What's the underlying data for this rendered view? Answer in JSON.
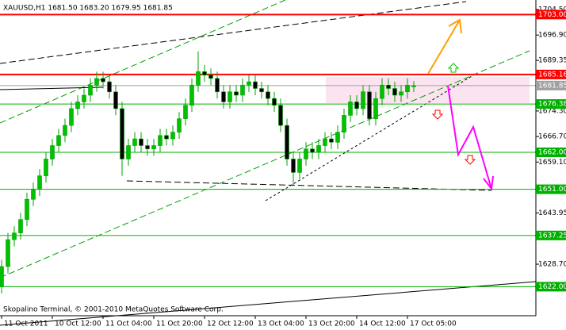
{
  "chart_data": {
    "type": "candlestick",
    "title": "XAUUSD,H1  1681.50 1683.20 1679.95 1681.85",
    "footer": "Skopalino Terminal, © 2001-2010 MetaQuotes Software Corp.",
    "categories": [
      "11 Oct 2011",
      null,
      null,
      null,
      null,
      null,
      null,
      null,
      "10 Oct 12:00",
      null,
      null,
      null,
      null,
      null,
      null,
      null,
      "11 Oct 04:00",
      null,
      null,
      null,
      null,
      null,
      null,
      null,
      "11 Oct 20:00",
      null,
      null,
      null,
      null,
      null,
      null,
      null,
      "12 Oct 12:00",
      null,
      null,
      null,
      null,
      null,
      null,
      null,
      "13 Oct 04:00",
      null,
      null,
      null,
      null,
      null,
      null,
      null,
      "13 Oct 20:00",
      null,
      null,
      null,
      null,
      null,
      null,
      null,
      "14 Oct 12:00",
      null,
      null,
      null,
      null,
      null,
      null,
      null,
      "17 Oct 05:00",
      null
    ],
    "open": [
      1622,
      1628,
      1636,
      1638,
      1642,
      1648,
      1651,
      1655,
      1660,
      1664,
      1667,
      1670,
      1675,
      1677,
      1679,
      1682,
      1684,
      1683,
      1680,
      1675,
      1660,
      1664,
      1666,
      1664,
      1663,
      1664,
      1667,
      1666,
      1668,
      1672,
      1676,
      1682,
      1686,
      1685,
      1684,
      1680,
      1677,
      1680,
      1679,
      1682,
      1683,
      1681,
      1680,
      1678,
      1676,
      1670,
      1660,
      1656,
      1660,
      1663,
      1662,
      1664,
      1666,
      1665,
      1668,
      1673,
      1677,
      1675,
      1680,
      1672,
      1678,
      1682,
      1681,
      1679,
      1680,
      1681.5
    ],
    "high": [
      1630,
      1638,
      1640,
      1644,
      1650,
      1653,
      1657,
      1662,
      1666,
      1669,
      1672,
      1677,
      1679,
      1681,
      1684,
      1686,
      1686,
      1685,
      1682,
      1677,
      1666,
      1668,
      1668,
      1666,
      1666,
      1669,
      1669,
      1670,
      1674,
      1678,
      1684,
      1692,
      1688,
      1687,
      1686,
      1682,
      1682,
      1682,
      1684,
      1685,
      1685,
      1683,
      1682,
      1680,
      1678,
      1672,
      1662,
      1662,
      1665,
      1665,
      1666,
      1668,
      1668,
      1670,
      1675,
      1679,
      1679,
      1682,
      1682,
      1680,
      1684,
      1684,
      1683,
      1682,
      1684,
      1683.2
    ],
    "low": [
      1620,
      1626,
      1634,
      1636,
      1640,
      1646,
      1649,
      1653,
      1658,
      1662,
      1665,
      1668,
      1673,
      1675,
      1677,
      1680,
      1681,
      1678,
      1673,
      1655,
      1658,
      1662,
      1662,
      1661,
      1661,
      1662,
      1664,
      1664,
      1666,
      1670,
      1674,
      1680,
      1683,
      1682,
      1678,
      1675,
      1675,
      1677,
      1677,
      1680,
      1679,
      1678,
      1676,
      1674,
      1668,
      1658,
      1652,
      1654,
      1658,
      1660,
      1660,
      1662,
      1663,
      1663,
      1666,
      1671,
      1673,
      1673,
      1670,
      1670,
      1676,
      1679,
      1677,
      1677,
      1678,
      1679.95
    ],
    "close": [
      1628,
      1636,
      1638,
      1642,
      1648,
      1651,
      1655,
      1660,
      1664,
      1667,
      1670,
      1675,
      1677,
      1679,
      1682,
      1684,
      1683,
      1680,
      1675,
      1660,
      1664,
      1666,
      1664,
      1663,
      1664,
      1667,
      1666,
      1668,
      1672,
      1676,
      1682,
      1686,
      1685,
      1684,
      1680,
      1677,
      1680,
      1679,
      1682,
      1683,
      1681,
      1680,
      1678,
      1676,
      1670,
      1660,
      1656,
      1660,
      1663,
      1662,
      1664,
      1666,
      1665,
      1668,
      1673,
      1677,
      1675,
      1680,
      1672,
      1678,
      1682,
      1681,
      1679,
      1680,
      1682,
      1681.85
    ],
    "up_color": "#00c000",
    "down_color": "#000000",
    "wick_color": "#00a000",
    "ylim": [
      1613.36,
      1707.33
    ],
    "yticks": [
      {
        "value": 1704.5,
        "label": "1704.50"
      },
      {
        "value": 1696.9,
        "label": "1696.90"
      },
      1689.35,
      {
        "value": 1674.3,
        "label": "1674.30"
      },
      {
        "value": 1666.7,
        "label": "1666.70"
      },
      {
        "value": 1659.1,
        "label": "1659.10"
      },
      1643.95,
      {
        "value": 1628.7,
        "label": "1628.70"
      }
    ],
    "levels": [
      {
        "value": 1703,
        "label": "1703.00",
        "color": "#ff0000"
      },
      {
        "value": 1685.16,
        "color": "#ff0000"
      },
      {
        "value": 1681.85,
        "color": "#a0a0a0"
      },
      {
        "value": 1676.38,
        "color": "#00b000"
      },
      {
        "value": 1662,
        "label": "1662.00",
        "color": "#00b000"
      },
      {
        "value": 1651,
        "label": "1651.00",
        "color": "#00b000"
      },
      {
        "value": 1637.25,
        "color": "#00b000"
      },
      {
        "value": 1622,
        "label": "1622.00",
        "color": "#00b000"
      }
    ]
  }
}
